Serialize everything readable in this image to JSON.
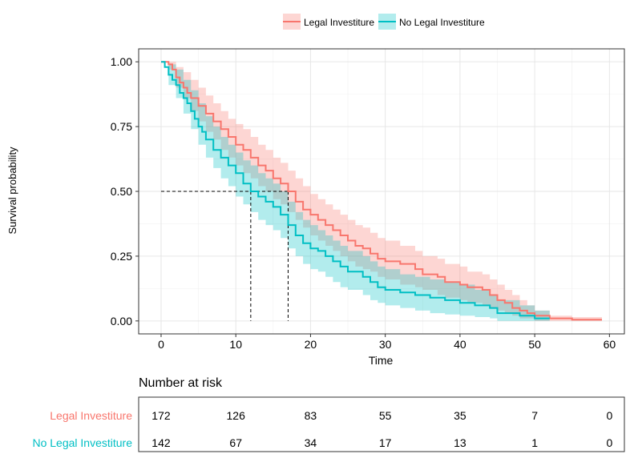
{
  "legend": {
    "items": [
      {
        "label": "Legal Investiture",
        "color": "#F8766D",
        "fill": "#F8766D"
      },
      {
        "label": "No Legal Investiture",
        "color": "#00BFC4",
        "fill": "#00BFC4"
      }
    ]
  },
  "chart_data": {
    "type": "line",
    "title": "",
    "xlabel": "Time",
    "ylabel": "Survival probability",
    "xlim": [
      -3,
      62
    ],
    "ylim": [
      -0.05,
      1.05
    ],
    "x_ticks": [
      "0",
      "10",
      "20",
      "30",
      "40",
      "50",
      "60"
    ],
    "y_ticks": [
      "0.00",
      "0.25",
      "0.50",
      "0.75",
      "1.00"
    ],
    "grid": true,
    "legend_position": "top",
    "median_survival": [
      17,
      12
    ],
    "series": [
      {
        "name": "Legal Investiture",
        "color": "#F8766D",
        "steps": [
          [
            0,
            1.0
          ],
          [
            1,
            0.99
          ],
          [
            1.5,
            0.97
          ],
          [
            2,
            0.94
          ],
          [
            2.5,
            0.92
          ],
          [
            3,
            0.9
          ],
          [
            3.5,
            0.88
          ],
          [
            4,
            0.86
          ],
          [
            5,
            0.83
          ],
          [
            6,
            0.8
          ],
          [
            7,
            0.77
          ],
          [
            8,
            0.74
          ],
          [
            9,
            0.71
          ],
          [
            10,
            0.68
          ],
          [
            11,
            0.66
          ],
          [
            12,
            0.63
          ],
          [
            13,
            0.6
          ],
          [
            14,
            0.58
          ],
          [
            15,
            0.55
          ],
          [
            16,
            0.53
          ],
          [
            17,
            0.5
          ],
          [
            18,
            0.46
          ],
          [
            19,
            0.43
          ],
          [
            20,
            0.41
          ],
          [
            21,
            0.39
          ],
          [
            22,
            0.37
          ],
          [
            23,
            0.35
          ],
          [
            24,
            0.33
          ],
          [
            25,
            0.31
          ],
          [
            26,
            0.29
          ],
          [
            27,
            0.28
          ],
          [
            28,
            0.26
          ],
          [
            29,
            0.24
          ],
          [
            30,
            0.23
          ],
          [
            32,
            0.22
          ],
          [
            34,
            0.2
          ],
          [
            35,
            0.18
          ],
          [
            37,
            0.17
          ],
          [
            38,
            0.15
          ],
          [
            40,
            0.14
          ],
          [
            41,
            0.13
          ],
          [
            43,
            0.12
          ],
          [
            44,
            0.1
          ],
          [
            45,
            0.08
          ],
          [
            46,
            0.07
          ],
          [
            47,
            0.05
          ],
          [
            48,
            0.04
          ],
          [
            49,
            0.03
          ],
          [
            50,
            0.02
          ],
          [
            52,
            0.01
          ],
          [
            55,
            0.005
          ],
          [
            59,
            0.005
          ]
        ],
        "ci_lower": [
          [
            0,
            1.0
          ],
          [
            1,
            0.97
          ],
          [
            2,
            0.9
          ],
          [
            3,
            0.86
          ],
          [
            4,
            0.81
          ],
          [
            5,
            0.77
          ],
          [
            6,
            0.73
          ],
          [
            7,
            0.7
          ],
          [
            8,
            0.66
          ],
          [
            9,
            0.63
          ],
          [
            10,
            0.6
          ],
          [
            11,
            0.57
          ],
          [
            12,
            0.55
          ],
          [
            13,
            0.52
          ],
          [
            14,
            0.5
          ],
          [
            15,
            0.47
          ],
          [
            16,
            0.45
          ],
          [
            17,
            0.42
          ],
          [
            18,
            0.39
          ],
          [
            19,
            0.36
          ],
          [
            20,
            0.33
          ],
          [
            21,
            0.31
          ],
          [
            22,
            0.29
          ],
          [
            23,
            0.27
          ],
          [
            24,
            0.25
          ],
          [
            25,
            0.23
          ],
          [
            26,
            0.21
          ],
          [
            27,
            0.2
          ],
          [
            28,
            0.19
          ],
          [
            29,
            0.17
          ],
          [
            30,
            0.16
          ],
          [
            32,
            0.14
          ],
          [
            34,
            0.13
          ],
          [
            35,
            0.12
          ],
          [
            37,
            0.1
          ],
          [
            38,
            0.09
          ],
          [
            40,
            0.08
          ],
          [
            41,
            0.07
          ],
          [
            43,
            0.06
          ],
          [
            44,
            0.05
          ],
          [
            45,
            0.04
          ],
          [
            46,
            0.03
          ],
          [
            47,
            0.02
          ],
          [
            48,
            0.01
          ],
          [
            50,
            0.0
          ],
          [
            59,
            0.0
          ]
        ],
        "ci_upper": [
          [
            0,
            1.0
          ],
          [
            1,
            1.0
          ],
          [
            2,
            0.98
          ],
          [
            3,
            0.96
          ],
          [
            4,
            0.93
          ],
          [
            5,
            0.9
          ],
          [
            6,
            0.87
          ],
          [
            7,
            0.84
          ],
          [
            8,
            0.81
          ],
          [
            9,
            0.78
          ],
          [
            10,
            0.76
          ],
          [
            11,
            0.74
          ],
          [
            12,
            0.71
          ],
          [
            13,
            0.68
          ],
          [
            14,
            0.66
          ],
          [
            15,
            0.63
          ],
          [
            16,
            0.61
          ],
          [
            17,
            0.58
          ],
          [
            18,
            0.55
          ],
          [
            19,
            0.52
          ],
          [
            20,
            0.49
          ],
          [
            21,
            0.47
          ],
          [
            22,
            0.45
          ],
          [
            23,
            0.43
          ],
          [
            24,
            0.41
          ],
          [
            25,
            0.39
          ],
          [
            26,
            0.37
          ],
          [
            27,
            0.36
          ],
          [
            28,
            0.34
          ],
          [
            29,
            0.32
          ],
          [
            30,
            0.31
          ],
          [
            32,
            0.29
          ],
          [
            34,
            0.27
          ],
          [
            35,
            0.25
          ],
          [
            37,
            0.24
          ],
          [
            38,
            0.22
          ],
          [
            40,
            0.21
          ],
          [
            41,
            0.19
          ],
          [
            43,
            0.18
          ],
          [
            44,
            0.16
          ],
          [
            45,
            0.14
          ],
          [
            46,
            0.12
          ],
          [
            47,
            0.1
          ],
          [
            48,
            0.08
          ],
          [
            49,
            0.06
          ],
          [
            50,
            0.04
          ],
          [
            52,
            0.02
          ],
          [
            55,
            0.015
          ],
          [
            59,
            0.015
          ]
        ]
      },
      {
        "name": "No Legal Investiture",
        "color": "#00BFC4",
        "steps": [
          [
            0,
            1.0
          ],
          [
            0.5,
            0.98
          ],
          [
            1,
            0.95
          ],
          [
            1.5,
            0.93
          ],
          [
            2,
            0.91
          ],
          [
            2.5,
            0.88
          ],
          [
            3,
            0.86
          ],
          [
            3.5,
            0.84
          ],
          [
            4,
            0.81
          ],
          [
            4.5,
            0.78
          ],
          [
            5,
            0.75
          ],
          [
            5.5,
            0.73
          ],
          [
            6,
            0.7
          ],
          [
            7,
            0.66
          ],
          [
            8,
            0.63
          ],
          [
            9,
            0.6
          ],
          [
            10,
            0.57
          ],
          [
            11,
            0.53
          ],
          [
            12,
            0.5
          ],
          [
            13,
            0.48
          ],
          [
            14,
            0.46
          ],
          [
            15,
            0.44
          ],
          [
            16,
            0.41
          ],
          [
            17,
            0.37
          ],
          [
            18,
            0.33
          ],
          [
            19,
            0.3
          ],
          [
            20,
            0.28
          ],
          [
            21,
            0.27
          ],
          [
            22,
            0.25
          ],
          [
            23,
            0.23
          ],
          [
            24,
            0.21
          ],
          [
            25,
            0.19
          ],
          [
            27,
            0.17
          ],
          [
            28,
            0.15
          ],
          [
            29,
            0.13
          ],
          [
            30,
            0.12
          ],
          [
            32,
            0.11
          ],
          [
            34,
            0.1
          ],
          [
            36,
            0.09
          ],
          [
            38,
            0.08
          ],
          [
            40,
            0.07
          ],
          [
            42,
            0.06
          ],
          [
            44,
            0.05
          ],
          [
            45,
            0.03
          ],
          [
            48,
            0.02
          ],
          [
            50,
            0.01
          ],
          [
            52,
            0.01
          ]
        ],
        "ci_lower": [
          [
            0,
            1.0
          ],
          [
            1,
            0.91
          ],
          [
            2,
            0.86
          ],
          [
            3,
            0.8
          ],
          [
            4,
            0.74
          ],
          [
            5,
            0.68
          ],
          [
            6,
            0.63
          ],
          [
            7,
            0.59
          ],
          [
            8,
            0.55
          ],
          [
            9,
            0.52
          ],
          [
            10,
            0.48
          ],
          [
            11,
            0.45
          ],
          [
            12,
            0.42
          ],
          [
            13,
            0.39
          ],
          [
            14,
            0.37
          ],
          [
            15,
            0.35
          ],
          [
            16,
            0.32
          ],
          [
            17,
            0.28
          ],
          [
            18,
            0.25
          ],
          [
            19,
            0.22
          ],
          [
            20,
            0.2
          ],
          [
            21,
            0.19
          ],
          [
            22,
            0.17
          ],
          [
            23,
            0.15
          ],
          [
            24,
            0.13
          ],
          [
            25,
            0.12
          ],
          [
            27,
            0.1
          ],
          [
            28,
            0.08
          ],
          [
            29,
            0.07
          ],
          [
            30,
            0.06
          ],
          [
            32,
            0.05
          ],
          [
            34,
            0.04
          ],
          [
            36,
            0.03
          ],
          [
            38,
            0.025
          ],
          [
            40,
            0.02
          ],
          [
            42,
            0.015
          ],
          [
            44,
            0.01
          ],
          [
            45,
            0.0
          ],
          [
            52,
            0.0
          ]
        ],
        "ci_upper": [
          [
            0,
            1.0
          ],
          [
            1,
            0.99
          ],
          [
            2,
            0.97
          ],
          [
            3,
            0.93
          ],
          [
            4,
            0.89
          ],
          [
            5,
            0.84
          ],
          [
            6,
            0.79
          ],
          [
            7,
            0.75
          ],
          [
            8,
            0.71
          ],
          [
            9,
            0.68
          ],
          [
            10,
            0.65
          ],
          [
            11,
            0.62
          ],
          [
            12,
            0.6
          ],
          [
            13,
            0.57
          ],
          [
            14,
            0.55
          ],
          [
            15,
            0.53
          ],
          [
            16,
            0.5
          ],
          [
            17,
            0.46
          ],
          [
            18,
            0.42
          ],
          [
            19,
            0.39
          ],
          [
            20,
            0.37
          ],
          [
            21,
            0.35
          ],
          [
            22,
            0.33
          ],
          [
            23,
            0.31
          ],
          [
            24,
            0.29
          ],
          [
            25,
            0.27
          ],
          [
            27,
            0.25
          ],
          [
            28,
            0.23
          ],
          [
            29,
            0.21
          ],
          [
            30,
            0.2
          ],
          [
            32,
            0.18
          ],
          [
            34,
            0.17
          ],
          [
            36,
            0.16
          ],
          [
            38,
            0.15
          ],
          [
            40,
            0.14
          ],
          [
            42,
            0.12
          ],
          [
            44,
            0.1
          ],
          [
            45,
            0.08
          ],
          [
            48,
            0.06
          ],
          [
            50,
            0.04
          ],
          [
            52,
            0.03
          ]
        ]
      }
    ]
  },
  "risk_table": {
    "title": "Number at risk",
    "times": [
      0,
      10,
      20,
      30,
      40,
      50,
      60
    ],
    "rows": [
      {
        "label": "Legal Investiture",
        "color": "#F8766D",
        "values": [
          "172",
          "126",
          "83",
          "55",
          "35",
          "7",
          "0"
        ]
      },
      {
        "label": "No Legal Investiture",
        "color": "#00BFC4",
        "values": [
          "142",
          "67",
          "34",
          "17",
          "13",
          "1",
          "0"
        ]
      }
    ]
  }
}
